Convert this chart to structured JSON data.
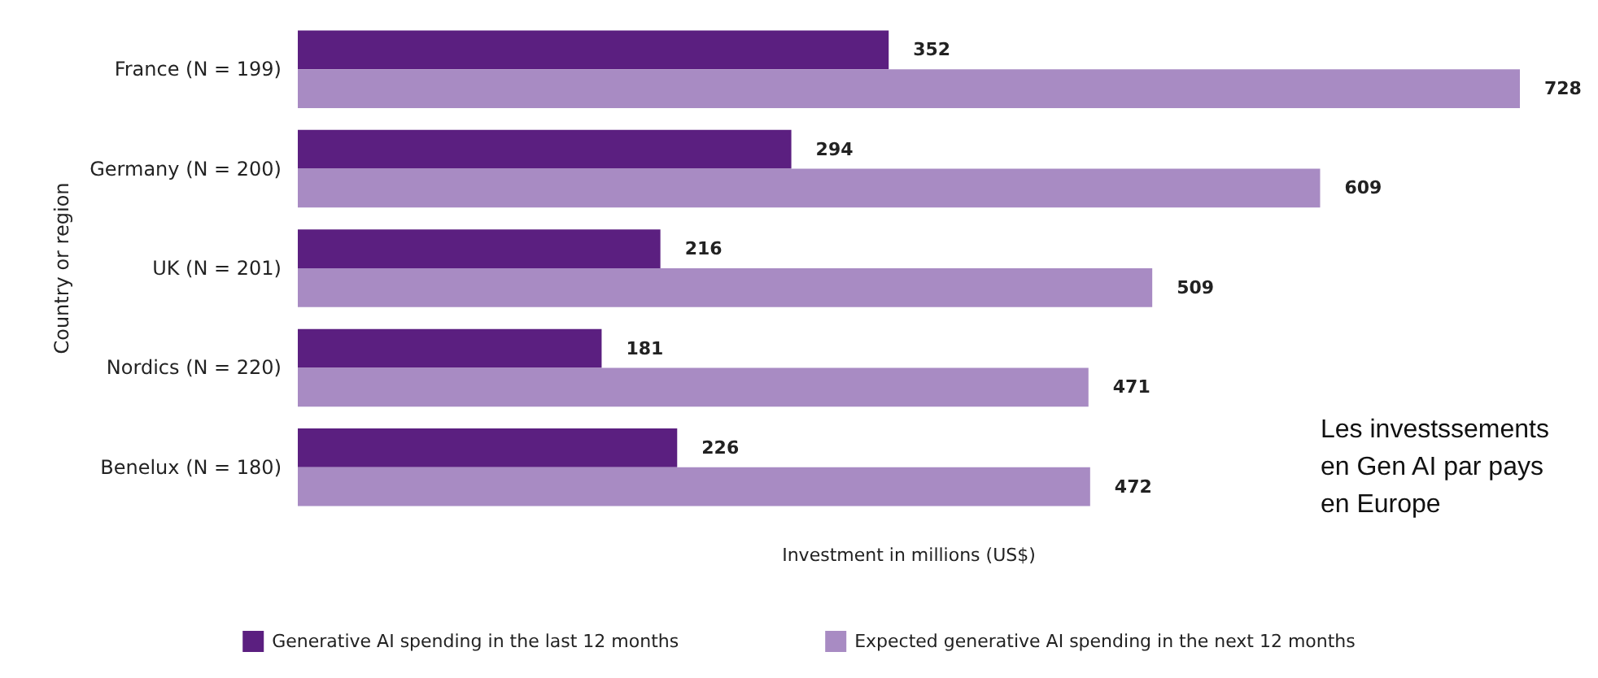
{
  "chart_data": {
    "type": "bar",
    "orientation": "horizontal",
    "categories": [
      "France (N = 199)",
      "Germany (N = 200)",
      "UK (N = 201)",
      "Nordics (N = 220)",
      "Benelux (N = 180)"
    ],
    "series": [
      {
        "name": "Generative AI spending in the last 12 months",
        "color": "#5b1f80",
        "values": [
          352,
          294,
          216,
          181,
          226
        ]
      },
      {
        "name": "Expected generative AI spending in the next 12 months",
        "color": "#a88bc3",
        "values": [
          728,
          609,
          509,
          471,
          472
        ]
      }
    ],
    "xlabel": "Investment in millions (US$)",
    "ylabel": "Country or region",
    "data_labels": true,
    "legend": "bottom",
    "grid": false,
    "tick_labels": "y",
    "annotations": [
      "Les investssements\nen Gen AI par pays\nen Europe"
    ]
  }
}
